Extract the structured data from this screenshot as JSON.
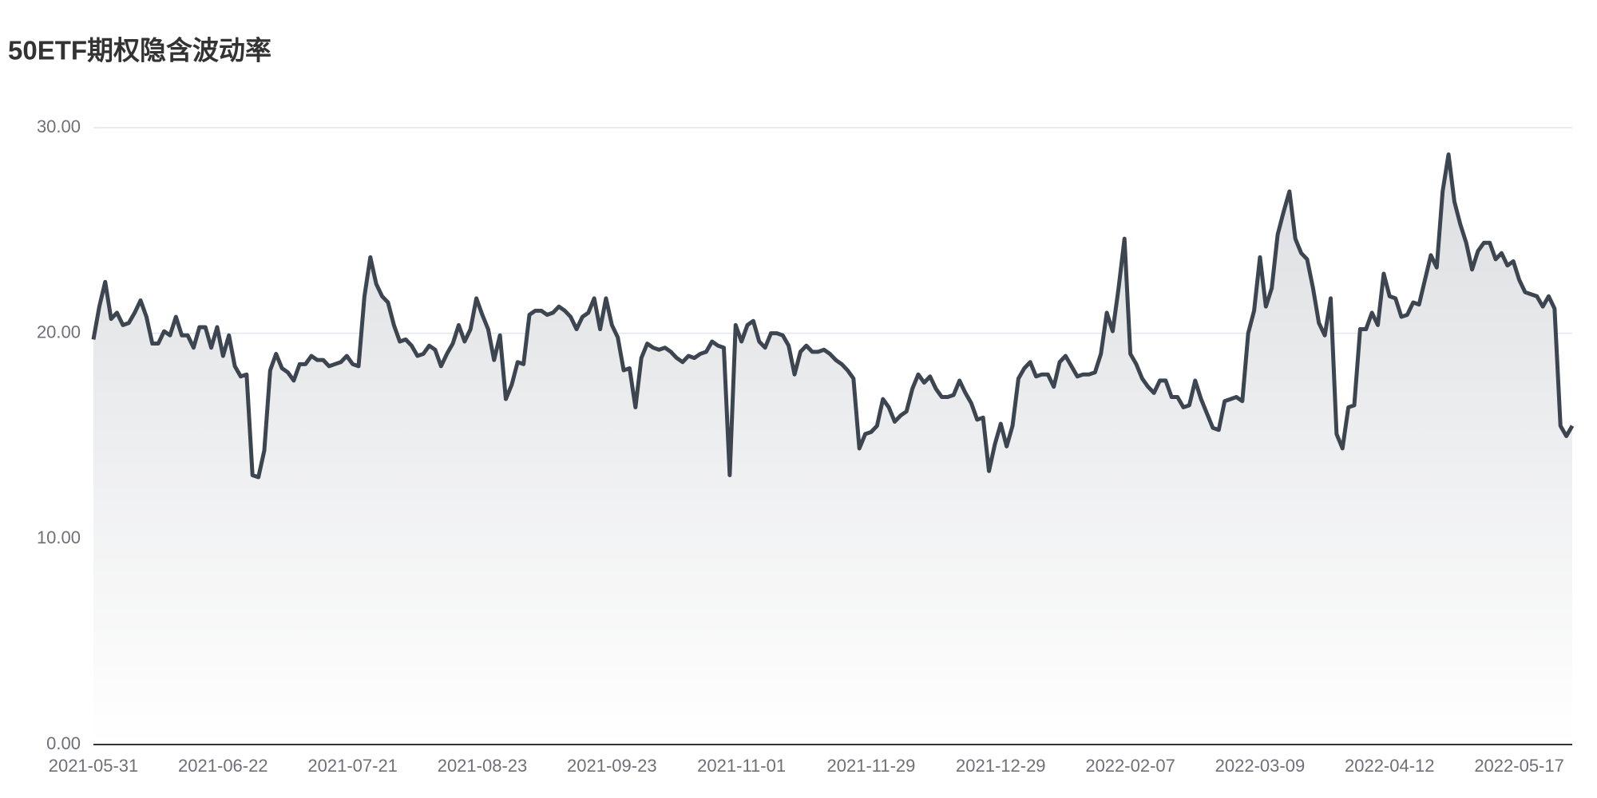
{
  "chart_data": {
    "type": "line",
    "title": "50ETF期权隐含波动率",
    "categories": [
      "2021-05-31",
      null,
      null,
      null,
      null,
      null,
      null,
      null,
      null,
      null,
      null,
      null,
      null,
      null,
      null,
      null,
      null,
      null,
      null,
      null,
      null,
      null,
      "2021-06-22",
      null,
      null,
      null,
      null,
      null,
      null,
      null,
      null,
      null,
      null,
      null,
      null,
      null,
      null,
      null,
      null,
      null,
      null,
      null,
      null,
      null,
      "2021-07-21",
      null,
      null,
      null,
      null,
      null,
      null,
      null,
      null,
      null,
      null,
      null,
      null,
      null,
      null,
      null,
      null,
      null,
      null,
      null,
      null,
      null,
      "2021-08-23",
      null,
      null,
      null,
      null,
      null,
      null,
      null,
      null,
      null,
      null,
      null,
      null,
      null,
      null,
      null,
      null,
      null,
      null,
      null,
      null,
      null,
      "2021-09-23",
      null,
      null,
      null,
      null,
      null,
      null,
      null,
      null,
      null,
      null,
      null,
      null,
      null,
      null,
      null,
      null,
      null,
      null,
      null,
      null,
      null,
      "2021-11-01",
      null,
      null,
      null,
      null,
      null,
      null,
      null,
      null,
      null,
      null,
      null,
      null,
      null,
      null,
      null,
      null,
      null,
      null,
      null,
      null,
      null,
      "2021-11-29",
      null,
      null,
      null,
      null,
      null,
      null,
      null,
      null,
      null,
      null,
      null,
      null,
      null,
      null,
      null,
      null,
      null,
      null,
      null,
      null,
      null,
      "2021-12-29",
      null,
      null,
      null,
      null,
      null,
      null,
      null,
      null,
      null,
      null,
      null,
      null,
      null,
      null,
      null,
      null,
      null,
      null,
      null,
      null,
      null,
      "2022-02-07",
      null,
      null,
      null,
      null,
      null,
      null,
      null,
      null,
      null,
      null,
      null,
      null,
      null,
      null,
      null,
      null,
      null,
      null,
      null,
      null,
      null,
      "2022-03-09",
      null,
      null,
      null,
      null,
      null,
      null,
      null,
      null,
      null,
      null,
      null,
      null,
      null,
      null,
      null,
      null,
      null,
      null,
      null,
      null,
      null,
      "2022-04-12",
      null,
      null,
      null,
      null,
      null,
      null,
      null,
      null,
      null,
      null,
      null,
      null,
      null,
      null,
      null,
      null,
      null,
      null,
      null,
      null,
      null,
      "2022-05-17",
      null,
      null,
      null,
      null,
      null,
      null,
      null,
      null,
      null
    ],
    "values": [
      19.7,
      21.3,
      22.5,
      20.7,
      21.0,
      20.4,
      20.5,
      21.0,
      21.6,
      20.8,
      19.5,
      19.5,
      20.1,
      19.9,
      20.8,
      19.9,
      19.9,
      19.3,
      20.3,
      20.3,
      19.3,
      20.3,
      18.9,
      19.9,
      18.4,
      17.9,
      18.0,
      13.1,
      13.0,
      14.3,
      18.2,
      19.0,
      18.3,
      18.1,
      17.7,
      18.5,
      18.5,
      18.9,
      18.7,
      18.7,
      18.4,
      18.5,
      18.6,
      18.9,
      18.5,
      18.4,
      21.8,
      23.7,
      22.4,
      21.8,
      21.5,
      20.4,
      19.6,
      19.7,
      19.4,
      18.9,
      19.0,
      19.4,
      19.2,
      18.4,
      19.0,
      19.5,
      20.4,
      19.6,
      20.2,
      21.7,
      20.9,
      20.2,
      18.7,
      19.9,
      16.8,
      17.5,
      18.6,
      18.5,
      20.9,
      21.1,
      21.1,
      20.9,
      21.0,
      21.3,
      21.1,
      20.8,
      20.2,
      20.8,
      21.0,
      21.7,
      20.2,
      21.7,
      20.4,
      19.8,
      18.2,
      18.3,
      16.4,
      18.8,
      19.5,
      19.3,
      19.2,
      19.3,
      19.1,
      18.8,
      18.6,
      18.9,
      18.8,
      19.0,
      19.1,
      19.6,
      19.4,
      19.3,
      13.1,
      20.4,
      19.6,
      20.4,
      20.6,
      19.6,
      19.3,
      20.0,
      20.0,
      19.9,
      19.4,
      18.0,
      19.1,
      19.4,
      19.1,
      19.1,
      19.2,
      19.0,
      18.7,
      18.5,
      18.2,
      17.8,
      14.4,
      15.1,
      15.2,
      15.5,
      16.8,
      16.4,
      15.7,
      16.0,
      16.2,
      17.3,
      18.0,
      17.6,
      17.9,
      17.3,
      16.9,
      16.9,
      17.0,
      17.7,
      17.1,
      16.6,
      15.8,
      15.9,
      13.3,
      14.6,
      15.6,
      14.5,
      15.5,
      17.8,
      18.3,
      18.6,
      17.9,
      18.0,
      18.0,
      17.4,
      18.6,
      18.9,
      18.4,
      17.9,
      18.0,
      18.0,
      18.1,
      19.0,
      21.0,
      20.1,
      22.2,
      24.6,
      19.0,
      18.5,
      17.8,
      17.4,
      17.1,
      17.7,
      17.7,
      16.9,
      16.9,
      16.4,
      16.5,
      17.7,
      16.8,
      16.1,
      15.4,
      15.3,
      16.7,
      16.8,
      16.9,
      16.7,
      20.0,
      21.1,
      23.7,
      21.3,
      22.2,
      24.8,
      25.9,
      26.9,
      24.6,
      23.9,
      23.6,
      22.2,
      20.5,
      19.9,
      21.7,
      15.1,
      14.4,
      16.4,
      16.5,
      20.2,
      20.2,
      21.0,
      20.4,
      22.9,
      21.8,
      21.7,
      20.8,
      20.9,
      21.5,
      21.4,
      22.6,
      23.8,
      23.2,
      26.9,
      28.7,
      26.4,
      25.3,
      24.4,
      23.1,
      24.0,
      24.4,
      24.4,
      23.6,
      23.9,
      23.3,
      23.5,
      22.6,
      22.0,
      21.9,
      21.8,
      21.3,
      21.8,
      21.2,
      15.5,
      15.0,
      15.5
    ],
    "color": "#3d4550",
    "ylim": [
      0,
      30
    ],
    "yticks": [
      {
        "value": 0,
        "label": "0.00"
      },
      {
        "value": 10,
        "label": "10.00"
      },
      {
        "value": 20,
        "label": "20.00"
      },
      {
        "value": 30,
        "label": "30.00"
      }
    ],
    "grid": true
  }
}
